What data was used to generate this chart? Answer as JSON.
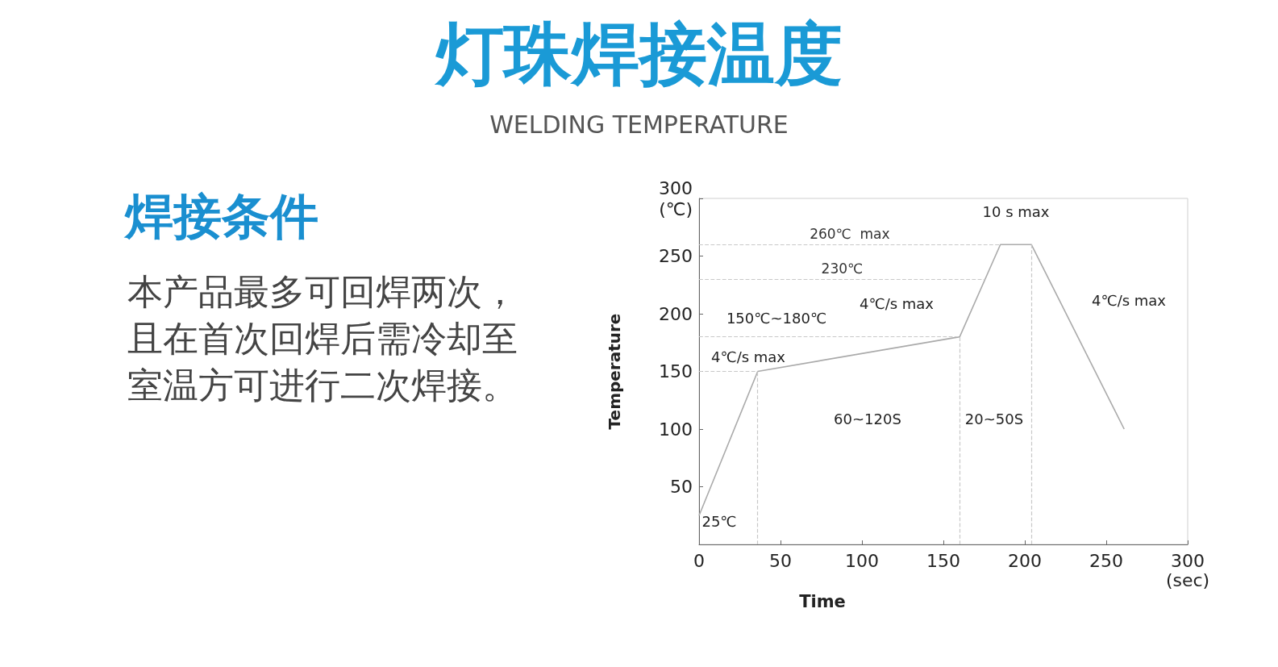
{
  "chart_data": {
    "type": "line",
    "title": "灯珠焊接温度",
    "subtitle": "WELDING TEMPERATURE",
    "xlabel": "Time",
    "ylabel": "Temperature",
    "x": [
      0,
      36,
      160,
      185,
      204,
      261
    ],
    "series": [
      {
        "color": "#aaaaaa",
        "values": [
          25,
          150,
          180,
          260,
          260,
          100
        ]
      }
    ],
    "xlim": [
      0,
      300
    ],
    "xticks": [
      0,
      50,
      100,
      150,
      200,
      250,
      {
        "value": 300,
        "label": "300\n(sec)"
      }
    ],
    "ylim": [
      0,
      300
    ],
    "yticks": [
      50,
      100,
      150,
      200,
      250,
      {
        "value": 300,
        "label": "300\n(℃)"
      }
    ],
    "marker": "none",
    "line_style": "solid",
    "ref_lines": [
      {
        "axis": "y",
        "value": 260,
        "label": "260℃  max",
        "line_style": "dashed",
        "color": "#c8c8c8"
      },
      {
        "axis": "y",
        "value": 230,
        "label": "230℃",
        "line_style": "dashed",
        "color": "#c8c8c8"
      },
      {
        "axis": "y",
        "value": 180,
        "label": null,
        "line_style": "dashed",
        "color": "#c8c8c8"
      },
      {
        "axis": "y",
        "value": 150,
        "label": null,
        "line_style": "dashed",
        "color": "#c8c8c8"
      },
      {
        "axis": "x",
        "value": 36,
        "label": null,
        "line_style": "dashed",
        "color": "#c8c8c8"
      },
      {
        "axis": "x",
        "value": 160,
        "label": null,
        "line_style": "dashed",
        "color": "#c8c8c8"
      },
      {
        "axis": "x",
        "value": 204,
        "label": null,
        "line_style": "dashed",
        "color": "#c8c8c8"
      }
    ],
    "annotations": [
      "焊接条件",
      "本产品最多可回焊两次，且在首次回焊后需冷却至室温方可进行二次焊接。",
      "25℃",
      "4℃/s max",
      "150℃~180℃",
      "4℃/s max",
      "4℃/s max",
      "60~120S",
      "20~50S",
      "10 s max"
    ]
  }
}
